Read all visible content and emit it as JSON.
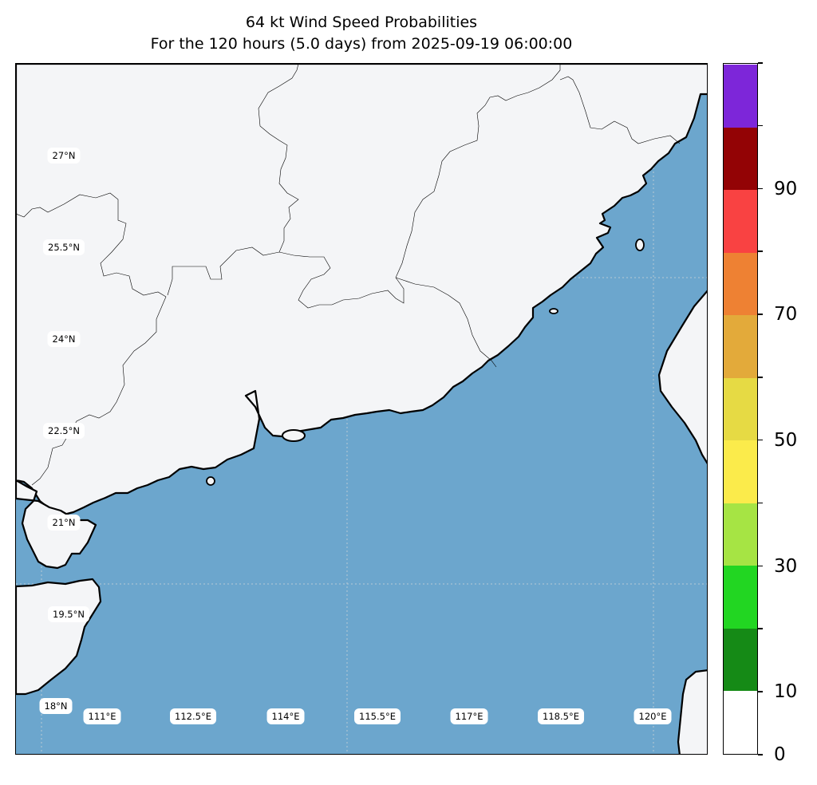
{
  "title": {
    "line1": "64 kt Wind Speed Probabilities",
    "line2": "For the 120 hours (5.0 days) from 2025-09-19 06:00:00"
  },
  "map": {
    "ocean_color": "#6ca6cd",
    "land_color": "#f4f5f7",
    "lat_labels": [
      "27°N",
      "25.5°N",
      "24°N",
      "22.5°N",
      "21°N",
      "19.5°N",
      "18°N"
    ],
    "lon_labels": [
      "111°E",
      "112.5°E",
      "114°E",
      "115.5°E",
      "117°E",
      "118.5°E",
      "120°E"
    ]
  },
  "colorbar": {
    "colors": [
      "#ffffff",
      "#158a16",
      "#22d622",
      "#a6e444",
      "#fbeb4b",
      "#e6da44",
      "#e3aa3a",
      "#ee8133",
      "#f94242",
      "#930305",
      "#7d26d9"
    ],
    "tick_labels": [
      "0",
      "10",
      "30",
      "50",
      "70",
      "90"
    ],
    "tick_values": [
      0,
      10,
      30,
      50,
      70,
      90
    ]
  }
}
